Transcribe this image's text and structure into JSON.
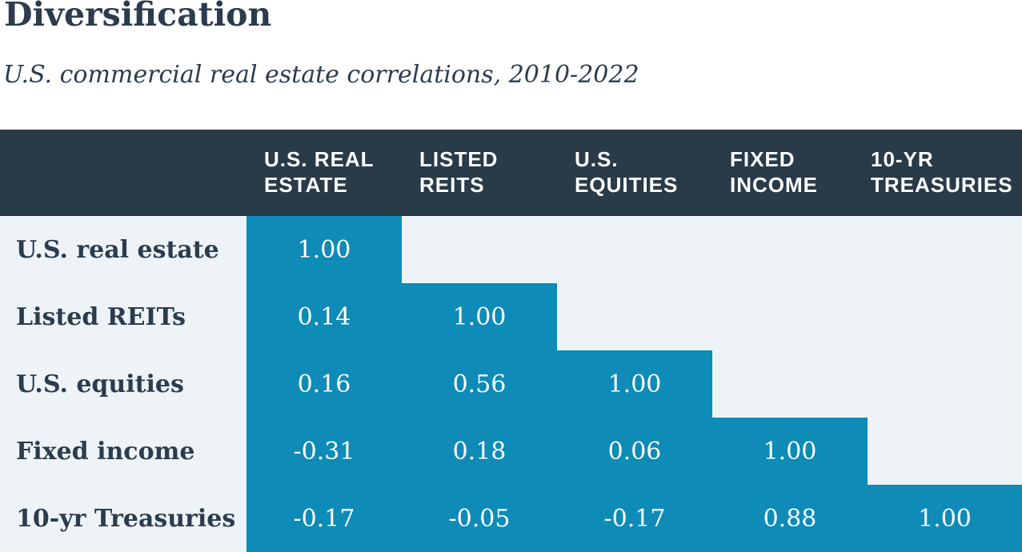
{
  "title": "Diversification",
  "subtitle": "U.S. commercial real estate correlations, 2010-2022",
  "colors": {
    "header_bg": "#293a49",
    "cell_blue": "#0e8bb7",
    "row_bg": "#edf3f6",
    "text_navy": "#2b3c4e",
    "cell_text": "#ffffff"
  },
  "table": {
    "column_headers": [
      "U.S. REAL ESTATE",
      "LISTED REITS",
      "U.S. EQUITIES",
      "FIXED INCOME",
      "10-YR TREASURIES"
    ],
    "rows": [
      {
        "label": "U.S. real estate",
        "values": [
          "1.00"
        ]
      },
      {
        "label": "Listed REITs",
        "values": [
          "0.14",
          "1.00"
        ]
      },
      {
        "label": "U.S. equities",
        "values": [
          "0.16",
          "0.56",
          "1.00"
        ]
      },
      {
        "label": "Fixed income",
        "values": [
          "-0.31",
          "0.18",
          "0.06",
          "1.00"
        ]
      },
      {
        "label": "10-yr Treasuries",
        "values": [
          "-0.17",
          "-0.05",
          "-0.17",
          "0.88",
          "1.00"
        ]
      }
    ]
  },
  "chart_data": {
    "type": "heatmap",
    "title": "Diversification",
    "subtitle": "U.S. commercial real estate correlations, 2010-2022",
    "column_labels": [
      "U.S. Real Estate",
      "Listed REITs",
      "U.S. Equities",
      "Fixed Income",
      "10-Yr Treasuries"
    ],
    "row_labels": [
      "U.S. real estate",
      "Listed REITs",
      "U.S. equities",
      "Fixed income",
      "10-yr Treasuries"
    ],
    "matrix": [
      [
        1.0,
        null,
        null,
        null,
        null
      ],
      [
        0.14,
        1.0,
        null,
        null,
        null
      ],
      [
        0.16,
        0.56,
        1.0,
        null,
        null
      ],
      [
        -0.31,
        0.18,
        0.06,
        1.0,
        null
      ],
      [
        -0.17,
        -0.05,
        -0.17,
        0.88,
        1.0
      ]
    ],
    "layout": "lower-triangular matrix, filled cells shaded blue, values to 2 decimal places"
  }
}
